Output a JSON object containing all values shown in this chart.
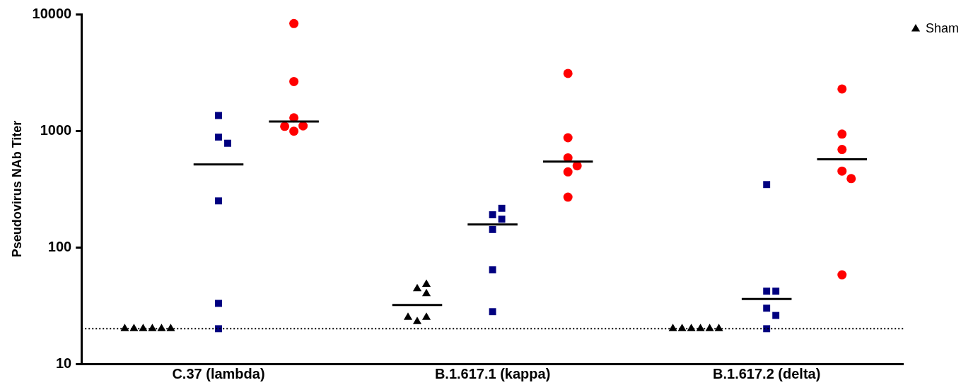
{
  "chart_data": {
    "type": "scatter",
    "categories": [
      "C.37 (lambda)",
      "B.1.617.1 (kappa)",
      "B.1.617.2 (delta)"
    ],
    "ylabel": "Pseudovirus NAb Titer",
    "log": "y",
    "grid": false,
    "legend": "top right",
    "ylim": [
      10,
      10000
    ],
    "yticks": [
      10,
      100,
      1000,
      10000
    ],
    "ref_lines": [
      {
        "axis": "y",
        "value": 20,
        "color": "#000000",
        "line_style": "dotted"
      }
    ],
    "series": [
      {
        "name": "Sham",
        "marker": "triangle",
        "color": "#000000",
        "x": [
          "C.37 (lambda)",
          "C.37 (lambda)",
          "C.37 (lambda)",
          "C.37 (lambda)",
          "C.37 (lambda)",
          "C.37 (lambda)",
          "B.1.617.1 (kappa)",
          "B.1.617.1 (kappa)",
          "B.1.617.1 (kappa)",
          "B.1.617.1 (kappa)",
          "B.1.617.1 (kappa)",
          "B.1.617.1 (kappa)",
          "B.1.617.2 (delta)",
          "B.1.617.2 (delta)",
          "B.1.617.2 (delta)",
          "B.1.617.2 (delta)",
          "B.1.617.2 (delta)",
          "B.1.617.2 (delta)"
        ],
        "values": [
          20,
          20,
          20,
          20,
          20,
          20,
          44,
          40,
          48,
          23,
          25,
          25,
          20,
          20,
          20,
          20,
          20,
          20
        ]
      },
      {
        "marker": "square",
        "color": "#000080",
        "x": [
          "C.37 (lambda)",
          "C.37 (lambda)",
          "C.37 (lambda)",
          "C.37 (lambda)",
          "C.37 (lambda)",
          "C.37 (lambda)",
          "B.1.617.1 (kappa)",
          "B.1.617.1 (kappa)",
          "B.1.617.1 (kappa)",
          "B.1.617.1 (kappa)",
          "B.1.617.1 (kappa)",
          "B.1.617.1 (kappa)",
          "B.1.617.2 (delta)",
          "B.1.617.2 (delta)",
          "B.1.617.2 (delta)",
          "B.1.617.2 (delta)",
          "B.1.617.2 (delta)",
          "B.1.617.2 (delta)"
        ],
        "values": [
          1350,
          880,
          780,
          250,
          33,
          20,
          190,
          216,
          174,
          142,
          64,
          28,
          345,
          42,
          42,
          30,
          26,
          20
        ]
      },
      {
        "marker": "circle",
        "color": "#ff0000",
        "x": [
          "C.37 (lambda)",
          "C.37 (lambda)",
          "C.37 (lambda)",
          "C.37 (lambda)",
          "C.37 (lambda)",
          "C.37 (lambda)",
          "B.1.617.1 (kappa)",
          "B.1.617.1 (kappa)",
          "B.1.617.1 (kappa)",
          "B.1.617.1 (kappa)",
          "B.1.617.1 (kappa)",
          "B.1.617.1 (kappa)",
          "B.1.617.2 (delta)",
          "B.1.617.2 (delta)",
          "B.1.617.2 (delta)",
          "B.1.617.2 (delta)",
          "B.1.617.2 (delta)",
          "B.1.617.2 (delta)"
        ],
        "values": [
          8300,
          2640,
          1290,
          990,
          1100,
          1090,
          3100,
          870,
          585,
          500,
          443,
          269,
          2280,
          935,
          690,
          450,
          388,
          58
        ]
      },
      {
        "type": "box",
        "color": "#000000",
        "boxes": [
          null,
          {
            "low": 32,
            "q1": 32,
            "median": 32,
            "q3": 32,
            "high": 32
          },
          null
        ]
      },
      {
        "type": "box",
        "color": "#000000",
        "boxes": [
          {
            "low": 513,
            "q1": 513,
            "median": 513,
            "q3": 513,
            "high": 513
          },
          {
            "low": 157,
            "q1": 157,
            "median": 157,
            "q3": 157,
            "high": 157
          },
          {
            "low": 36,
            "q1": 36,
            "median": 36,
            "q3": 36,
            "high": 36
          }
        ]
      },
      {
        "type": "box",
        "color": "#000000",
        "boxes": [
          {
            "low": 1200,
            "q1": 1200,
            "median": 1200,
            "q3": 1200,
            "high": 1200
          },
          {
            "low": 544,
            "q1": 544,
            "median": 544,
            "q3": 544,
            "high": 544
          },
          {
            "low": 569,
            "q1": 569,
            "median": 569,
            "q3": 569,
            "high": 569
          }
        ]
      }
    ]
  }
}
